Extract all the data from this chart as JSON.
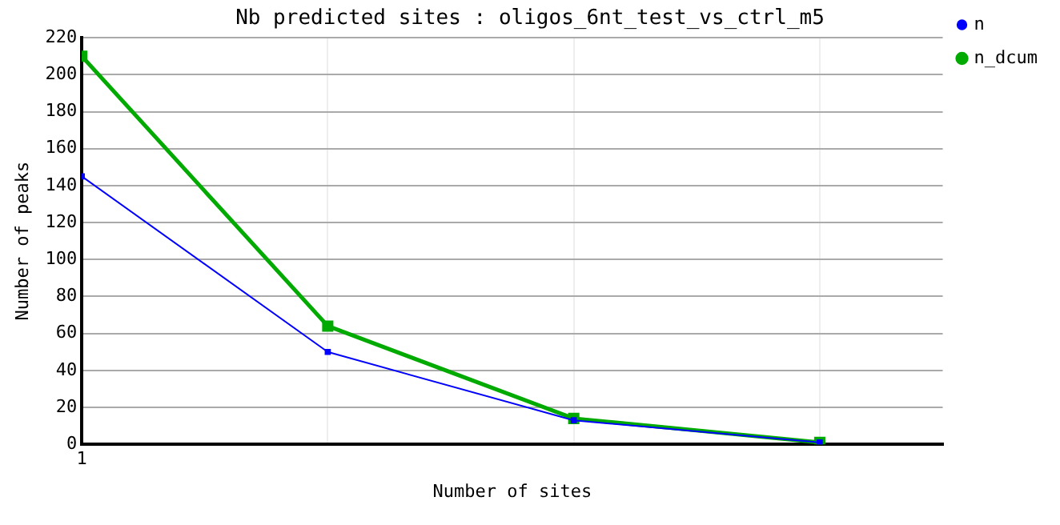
{
  "chart_data": {
    "type": "line",
    "title": "Nb predicted sites : oligos_6nt_test_vs_ctrl_m5",
    "xlabel": "Number of sites",
    "ylabel": "Number of peaks",
    "categories": [
      "1",
      null,
      null,
      null
    ],
    "series": [
      {
        "name": "n",
        "color": "#0000ff",
        "values": [
          145,
          50,
          13,
          1
        ]
      },
      {
        "name": "n_dcum",
        "color": "#00aa00",
        "values": [
          210,
          64,
          14,
          1
        ]
      }
    ],
    "ylim": [
      0,
      220
    ],
    "yticks": [
      0,
      20,
      40,
      60,
      80,
      100,
      120,
      140,
      160,
      180,
      200,
      220
    ],
    "grid": true,
    "legend": "top right",
    "marker": "square",
    "line_style": "solid"
  }
}
